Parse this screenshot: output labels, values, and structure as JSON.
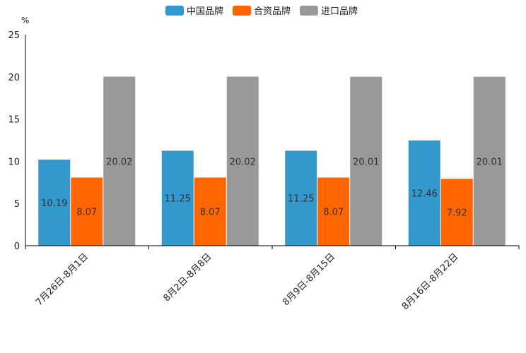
{
  "chart_data": {
    "type": "bar",
    "unit": "%",
    "categories": [
      "7月26日-8月1日",
      "8月2日-8月8日",
      "8月9日-8月15日",
      "8月16日-8月22日"
    ],
    "series": [
      {
        "name": "中国品牌",
        "color": "#3399cc",
        "values": [
          10.19,
          11.25,
          11.25,
          12.46
        ]
      },
      {
        "name": "合资品牌",
        "color": "#ff6600",
        "values": [
          8.07,
          8.07,
          8.07,
          7.92
        ]
      },
      {
        "name": "进口品牌",
        "color": "#999999",
        "values": [
          20.02,
          20.02,
          20.01,
          20.01
        ]
      }
    ],
    "ylim": [
      0,
      25
    ],
    "yticks": [
      0,
      5,
      10,
      15,
      20,
      25
    ],
    "legend_position": "top-center",
    "grid": false
  }
}
